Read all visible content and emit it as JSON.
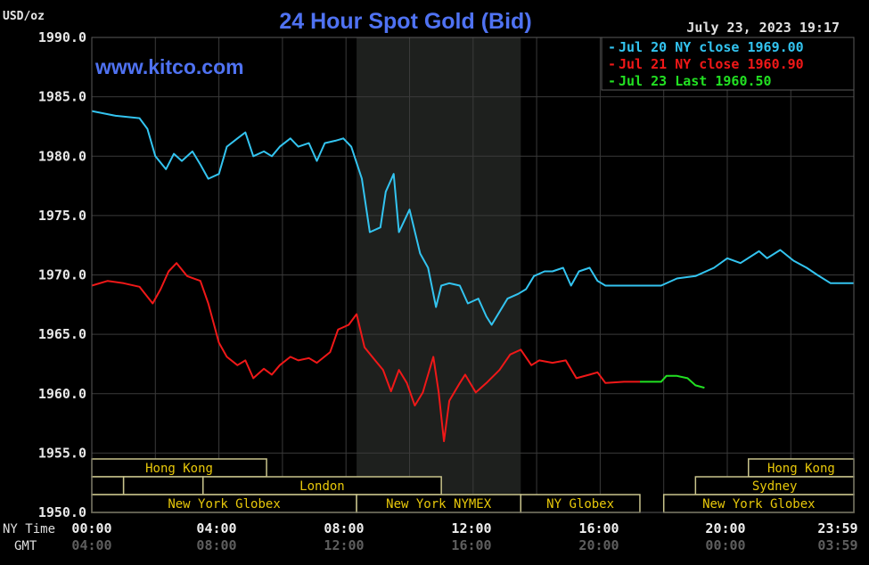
{
  "chart_data": {
    "type": "line",
    "title": "24 Hour Spot Gold (Bid)",
    "ylabel": "USD/oz",
    "watermark": "www.kitco.com",
    "timestamp": "July 23, 2023 19:17",
    "ylim": [
      1950,
      1990
    ],
    "yticks": [
      "1990.0",
      "1985.0",
      "1980.0",
      "1975.0",
      "1970.0",
      "1965.0",
      "1960.0",
      "1955.0",
      "1950.0"
    ],
    "grid": true,
    "legend_placement": "top-right",
    "x_axis": {
      "row_labels": [
        "NY Time",
        "GMT"
      ],
      "ny_ticks": [
        "00:00",
        "04:00",
        "08:00",
        "12:00",
        "16:00",
        "20:00",
        "23:59"
      ],
      "gmt_ticks": [
        "04:00",
        "08:00",
        "12:00",
        "16:00",
        "20:00",
        "00:00",
        "03:59"
      ]
    },
    "shaded_period": {
      "label": "New York NYMEX",
      "start": "08:20",
      "end": "13:30"
    },
    "sessions": [
      {
        "label": "Hong Kong",
        "row": 0,
        "start": "00:00",
        "end": "05:30"
      },
      {
        "label": "Hong Kong",
        "row": 0,
        "start": "20:40",
        "end": "23:59"
      },
      {
        "label": "",
        "row": 1,
        "start": "00:00",
        "end": "01:00"
      },
      {
        "label": "",
        "row": 1,
        "start": "01:00",
        "end": "03:30"
      },
      {
        "label": "London",
        "row": 1,
        "start": "03:30",
        "end": "11:00"
      },
      {
        "label": "Sydney",
        "row": 1,
        "start": "19:00",
        "end": "23:59"
      },
      {
        "label": "New York Globex",
        "row": 2,
        "start": "00:00",
        "end": "08:20"
      },
      {
        "label": "New York NYMEX",
        "row": 2,
        "start": "08:20",
        "end": "13:30"
      },
      {
        "label": "NY Globex",
        "row": 2,
        "start": "13:30",
        "end": "17:15"
      },
      {
        "label": "New York Globex",
        "row": 2,
        "start": "18:00",
        "end": "23:59"
      }
    ],
    "series": [
      {
        "name": "Jul 20 NY close 1969.00",
        "color": "#33c4f0",
        "points": [
          [
            "00:00",
            1983.8
          ],
          [
            "00:45",
            1983.4
          ],
          [
            "01:30",
            1983.2
          ],
          [
            "01:45",
            1982.3
          ],
          [
            "02:00",
            1980.0
          ],
          [
            "02:20",
            1978.9
          ],
          [
            "02:35",
            1980.2
          ],
          [
            "02:50",
            1979.6
          ],
          [
            "03:10",
            1980.4
          ],
          [
            "03:25",
            1979.3
          ],
          [
            "03:40",
            1978.1
          ],
          [
            "04:00",
            1978.5
          ],
          [
            "04:15",
            1980.8
          ],
          [
            "04:35",
            1981.5
          ],
          [
            "04:50",
            1982.0
          ],
          [
            "05:05",
            1980.0
          ],
          [
            "05:25",
            1980.4
          ],
          [
            "05:40",
            1980.0
          ],
          [
            "05:55",
            1980.8
          ],
          [
            "06:15",
            1981.5
          ],
          [
            "06:30",
            1980.8
          ],
          [
            "06:50",
            1981.1
          ],
          [
            "07:05",
            1979.6
          ],
          [
            "07:20",
            1981.1
          ],
          [
            "07:40",
            1981.3
          ],
          [
            "07:55",
            1981.5
          ],
          [
            "08:10",
            1980.8
          ],
          [
            "08:30",
            1978.1
          ],
          [
            "08:45",
            1973.6
          ],
          [
            "09:05",
            1974.0
          ],
          [
            "09:15",
            1977.0
          ],
          [
            "09:30",
            1978.5
          ],
          [
            "09:40",
            1973.6
          ],
          [
            "10:00",
            1975.5
          ],
          [
            "10:20",
            1971.8
          ],
          [
            "10:35",
            1970.6
          ],
          [
            "10:50",
            1967.3
          ],
          [
            "11:00",
            1969.1
          ],
          [
            "11:15",
            1969.3
          ],
          [
            "11:35",
            1969.1
          ],
          [
            "11:50",
            1967.6
          ],
          [
            "12:10",
            1968.0
          ],
          [
            "12:25",
            1966.5
          ],
          [
            "12:35",
            1965.8
          ],
          [
            "12:50",
            1966.9
          ],
          [
            "13:05",
            1968.0
          ],
          [
            "13:25",
            1968.4
          ],
          [
            "13:40",
            1968.8
          ],
          [
            "13:55",
            1969.9
          ],
          [
            "14:15",
            1970.3
          ],
          [
            "14:30",
            1970.3
          ],
          [
            "14:50",
            1970.6
          ],
          [
            "15:05",
            1969.1
          ],
          [
            "15:20",
            1970.3
          ],
          [
            "15:40",
            1970.6
          ],
          [
            "15:55",
            1969.5
          ],
          [
            "16:10",
            1969.1
          ],
          [
            "16:45",
            1969.1
          ],
          [
            "17:55",
            1969.1
          ],
          [
            "18:25",
            1969.7
          ],
          [
            "19:00",
            1969.9
          ],
          [
            "19:35",
            1970.6
          ],
          [
            "20:00",
            1971.4
          ],
          [
            "20:25",
            1971.0
          ],
          [
            "21:00",
            1972.0
          ],
          [
            "21:15",
            1971.4
          ],
          [
            "21:40",
            1972.1
          ],
          [
            "22:05",
            1971.2
          ],
          [
            "22:30",
            1970.6
          ],
          [
            "22:50",
            1970.0
          ],
          [
            "23:15",
            1969.3
          ],
          [
            "23:59",
            1969.3
          ]
        ]
      },
      {
        "name": "Jul 21 NY close 1960.90",
        "color": "#f01818",
        "points": [
          [
            "00:00",
            1969.1
          ],
          [
            "00:30",
            1969.5
          ],
          [
            "01:00",
            1969.3
          ],
          [
            "01:30",
            1969.0
          ],
          [
            "01:55",
            1967.6
          ],
          [
            "02:10",
            1968.8
          ],
          [
            "02:25",
            1970.3
          ],
          [
            "02:40",
            1971.0
          ],
          [
            "03:00",
            1969.9
          ],
          [
            "03:25",
            1969.5
          ],
          [
            "03:40",
            1967.6
          ],
          [
            "04:00",
            1964.3
          ],
          [
            "04:15",
            1963.1
          ],
          [
            "04:35",
            1962.4
          ],
          [
            "04:50",
            1962.8
          ],
          [
            "05:05",
            1961.3
          ],
          [
            "05:25",
            1962.1
          ],
          [
            "05:40",
            1961.6
          ],
          [
            "05:55",
            1962.4
          ],
          [
            "06:15",
            1963.1
          ],
          [
            "06:30",
            1962.8
          ],
          [
            "06:50",
            1963.0
          ],
          [
            "07:05",
            1962.6
          ],
          [
            "07:30",
            1963.5
          ],
          [
            "07:45",
            1965.4
          ],
          [
            "08:05",
            1965.8
          ],
          [
            "08:20",
            1966.7
          ],
          [
            "08:35",
            1963.9
          ],
          [
            "08:55",
            1962.8
          ],
          [
            "09:10",
            1962.0
          ],
          [
            "09:25",
            1960.2
          ],
          [
            "09:40",
            1962.0
          ],
          [
            "09:55",
            1960.9
          ],
          [
            "10:10",
            1959.0
          ],
          [
            "10:25",
            1960.1
          ],
          [
            "10:45",
            1963.1
          ],
          [
            "10:55",
            1960.1
          ],
          [
            "11:05",
            1956.0
          ],
          [
            "11:15",
            1959.4
          ],
          [
            "11:35",
            1960.9
          ],
          [
            "11:45",
            1961.6
          ],
          [
            "12:05",
            1960.1
          ],
          [
            "12:25",
            1960.9
          ],
          [
            "12:50",
            1962.0
          ],
          [
            "13:10",
            1963.3
          ],
          [
            "13:30",
            1963.7
          ],
          [
            "13:50",
            1962.4
          ],
          [
            "14:05",
            1962.8
          ],
          [
            "14:30",
            1962.6
          ],
          [
            "14:55",
            1962.8
          ],
          [
            "15:15",
            1961.3
          ],
          [
            "15:40",
            1961.6
          ],
          [
            "15:55",
            1961.8
          ],
          [
            "16:10",
            1960.9
          ],
          [
            "16:45",
            1961.0
          ],
          [
            "17:15",
            1961.0
          ]
        ]
      },
      {
        "name": "Jul 23 Last 1960.50",
        "color": "#22e022",
        "points": [
          [
            "17:15",
            1961.0
          ],
          [
            "17:55",
            1961.0
          ],
          [
            "18:05",
            1961.5
          ],
          [
            "18:25",
            1961.5
          ],
          [
            "18:45",
            1961.3
          ],
          [
            "19:00",
            1960.7
          ],
          [
            "19:17",
            1960.5
          ]
        ]
      }
    ]
  }
}
